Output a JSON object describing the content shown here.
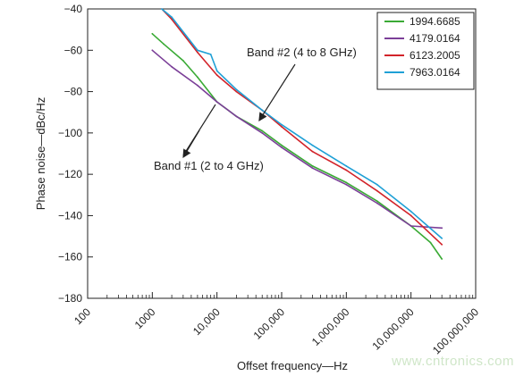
{
  "watermark": "www.cntronics.com",
  "chart_data": {
    "type": "line",
    "xscale": "log",
    "xlim": [
      100,
      100000000
    ],
    "ylim": [
      -180,
      -40
    ],
    "xlabel": "Offset frequency—Hz",
    "ylabel": "Phase noise—dBc/Hz",
    "xticks": [
      {
        "value": 100,
        "label": "100"
      },
      {
        "value": 1000,
        "label": "1000"
      },
      {
        "value": 10000,
        "label": "10,000"
      },
      {
        "value": 100000,
        "label": "100,000"
      },
      {
        "value": 1000000,
        "label": "1,000,000"
      },
      {
        "value": 10000000,
        "label": "10,000,000"
      },
      {
        "value": 100000000,
        "label": "100,000,000"
      }
    ],
    "yticks": [
      {
        "value": -40,
        "label": "−40"
      },
      {
        "value": -60,
        "label": "−60"
      },
      {
        "value": -80,
        "label": "−80"
      },
      {
        "value": -100,
        "label": "−100"
      },
      {
        "value": -120,
        "label": "−120"
      },
      {
        "value": -140,
        "label": "−140"
      },
      {
        "value": -160,
        "label": "−160"
      },
      {
        "value": -180,
        "label": "−180"
      }
    ],
    "grid": false,
    "legend_position": "top-right",
    "series": [
      {
        "name": "1994.6685",
        "color": "#3aaa35",
        "x": [
          1000,
          1500,
          3000,
          5000,
          10000,
          20000,
          50000,
          100000,
          300000,
          1000000,
          3000000,
          10000000,
          20000000,
          30000000
        ],
        "y": [
          -52,
          -57,
          -65,
          -73,
          -85,
          -92,
          -99,
          -106,
          -116,
          -124,
          -133,
          -145,
          -153,
          -161
        ]
      },
      {
        "name": "4179.0164",
        "color": "#7b3f98",
        "x": [
          1000,
          2000,
          5000,
          10000,
          20000,
          50000,
          100000,
          300000,
          1000000,
          3000000,
          10000000,
          30000000
        ],
        "y": [
          -60,
          -68,
          -77,
          -85,
          -92,
          -100,
          -107,
          -117,
          -125,
          -134,
          -145,
          -146
        ]
      },
      {
        "name": "6123.2005",
        "color": "#d2232a",
        "x": [
          1400,
          2000,
          5000,
          10000,
          20000,
          50000,
          100000,
          300000,
          1000000,
          3000000,
          10000000,
          30000000
        ],
        "y": [
          -40,
          -45,
          -61,
          -72,
          -80,
          -89,
          -97,
          -109,
          -118,
          -128,
          -140,
          -154
        ]
      },
      {
        "name": "7963.0164",
        "color": "#1fa0d6",
        "x": [
          1400,
          2000,
          5000,
          8000,
          10000,
          20000,
          50000,
          100000,
          300000,
          1000000,
          3000000,
          10000000,
          30000000
        ],
        "y": [
          -40,
          -44,
          -60,
          -62,
          -70,
          -79,
          -89,
          -96,
          -106,
          -116,
          -125,
          -138,
          -151
        ]
      }
    ],
    "annotations": [
      {
        "text": "Band #2 (4 to 8 GHz)",
        "arrow_to": {
          "x": 45000,
          "y": -94
        }
      },
      {
        "text": "Band #1 (2 to 4 GHz)",
        "arrow_to": {
          "x": 8000,
          "y": -86
        }
      }
    ]
  }
}
